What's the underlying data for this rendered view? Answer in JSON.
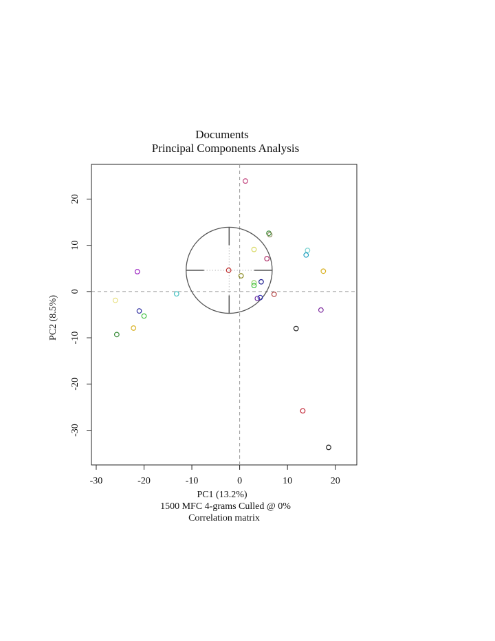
{
  "chart_data": {
    "type": "scatter",
    "title": "Documents",
    "subtitle": "Principal Components Analysis",
    "xlabel": "PC1 (13.2%)",
    "ylabel": "PC2 (8.5%)",
    "caption_lines": [
      "1500 MFC 4-grams Culled @ 0%",
      "Correlation matrix"
    ],
    "xlim": [
      -31,
      24.5
    ],
    "ylim": [
      -37.5,
      27.5
    ],
    "x_ticks": [
      -30,
      -20,
      -10,
      0,
      10,
      20
    ],
    "y_ticks": [
      -30,
      -20,
      -10,
      0,
      10,
      20
    ],
    "grid": false,
    "reference_lines": {
      "x": 0,
      "y": 0,
      "style": "dashed"
    },
    "circle": {
      "cx": -2.2,
      "cy": 4.6,
      "r": 9.0
    },
    "points": [
      {
        "x": 1.2,
        "y": 23.9,
        "color": "#c0407a"
      },
      {
        "x": 6.1,
        "y": 12.6,
        "color": "#3f8f3f"
      },
      {
        "x": 6.3,
        "y": 12.3,
        "color": "#8a8a5a"
      },
      {
        "x": 3.0,
        "y": 9.1,
        "color": "#d8d860"
      },
      {
        "x": 5.7,
        "y": 7.1,
        "color": "#b0306a"
      },
      {
        "x": 14.2,
        "y": 8.9,
        "color": "#7ad2d0"
      },
      {
        "x": 13.9,
        "y": 7.9,
        "color": "#20a0c0"
      },
      {
        "x": 17.5,
        "y": 4.4,
        "color": "#d8b020"
      },
      {
        "x": -21.4,
        "y": 4.3,
        "color": "#9a20c0"
      },
      {
        "x": -2.3,
        "y": 4.6,
        "color": "#c03030"
      },
      {
        "x": 0.3,
        "y": 3.4,
        "color": "#8a8a20"
      },
      {
        "x": 4.5,
        "y": 2.1,
        "color": "#202090"
      },
      {
        "x": 3.0,
        "y": 1.9,
        "color": "#90d060"
      },
      {
        "x": 3.0,
        "y": 1.3,
        "color": "#40c040"
      },
      {
        "x": 7.2,
        "y": -0.6,
        "color": "#b04040"
      },
      {
        "x": 3.7,
        "y": -1.5,
        "color": "#7030a0"
      },
      {
        "x": 4.3,
        "y": -1.3,
        "color": "#3030b0"
      },
      {
        "x": -13.2,
        "y": -0.5,
        "color": "#40c0c0"
      },
      {
        "x": -26.0,
        "y": -1.9,
        "color": "#e8e080"
      },
      {
        "x": -21.0,
        "y": -4.2,
        "color": "#3030a0"
      },
      {
        "x": -20.0,
        "y": -5.3,
        "color": "#40c040"
      },
      {
        "x": 17.0,
        "y": -4.0,
        "color": "#8030a0"
      },
      {
        "x": -22.2,
        "y": -7.9,
        "color": "#d8b020"
      },
      {
        "x": -25.7,
        "y": -9.3,
        "color": "#3f8f3f"
      },
      {
        "x": 11.8,
        "y": -8.0,
        "color": "#202020"
      },
      {
        "x": 13.2,
        "y": -25.8,
        "color": "#c02030"
      },
      {
        "x": 18.6,
        "y": -33.7,
        "color": "#202020"
      }
    ]
  }
}
